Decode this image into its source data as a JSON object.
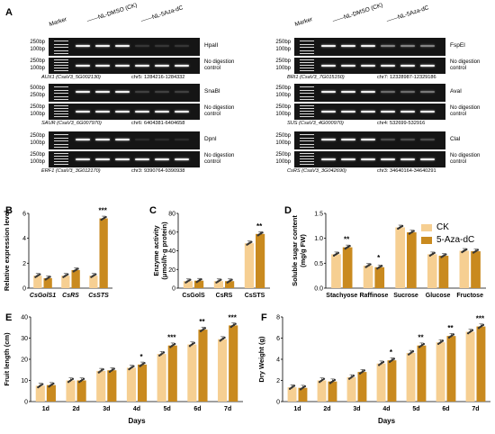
{
  "panel_a": {
    "label": "A",
    "headers": {
      "marker": "Marker",
      "ck": "NL-DMSO (CK)",
      "aza": "NL-5Aza-dC"
    },
    "bp_top": "250bp",
    "bp_bottom": "100bp",
    "bp_top_alt": "500bp",
    "bp_mid_alt": "250bp",
    "no_digestion": "No digestion\ncontrol",
    "gels": [
      {
        "enzyme": "HpaII",
        "gene": "AUX1 (CsaV3_5G002130)",
        "chr": "chr5: 1284216-1284332"
      },
      {
        "enzyme": "SnaBI",
        "gene": "SAUR (CsaV3_6G007970)",
        "chr": "chr6: 6404381-6404658"
      },
      {
        "enzyme": "DpnI",
        "gene": "ERF1 (CsaV3_3G012170)",
        "chr": "chr3: 9390764-9390938"
      },
      {
        "enzyme": "FspEI",
        "gene": "BRI1 (CsaV3_7G015150)",
        "chr": "chr7: 12328987-12329186"
      },
      {
        "enzyme": "AvaI",
        "gene": "SUS (CsaV3_4G000970)",
        "chr": "chr4: 532699-532916"
      },
      {
        "enzyme": "ClaI",
        "gene": "CsRS (CsaV3_3G042690)",
        "chr": "chr3: 34640164-34640291"
      }
    ]
  },
  "legend": {
    "ck": "CK",
    "aza": "5-Aza-dC"
  },
  "colors": {
    "ck": "#f6cf92",
    "aza": "#c98a1f",
    "dot": "#e040c8",
    "bar_edge": "#d9a050"
  },
  "chart_data": [
    {
      "panel": "B",
      "type": "bar",
      "ylabel": "Relative expression level",
      "ylim": [
        0,
        6
      ],
      "yticks": [
        "0",
        "2",
        "4",
        "6"
      ],
      "categories": [
        "CsGolS1",
        "CsRS",
        "CsSTS"
      ],
      "series": [
        {
          "name": "CK",
          "values": [
            1.0,
            1.0,
            1.0
          ]
        },
        {
          "name": "5-Aza-dC",
          "values": [
            0.8,
            1.45,
            5.6
          ]
        }
      ],
      "significance": [
        "",
        "",
        "***"
      ]
    },
    {
      "panel": "C",
      "type": "bar",
      "ylabel": "Enzyme activity\n(μmol/h·g protein)",
      "ylim": [
        0,
        80
      ],
      "yticks": [
        "0",
        "20",
        "40",
        "60",
        "80"
      ],
      "categories": [
        "CsGolS",
        "CsRS",
        "CsSTS"
      ],
      "series": [
        {
          "name": "CK",
          "values": [
            7.5,
            7.5,
            48
          ]
        },
        {
          "name": "5-Aza-dC",
          "values": [
            8,
            7.5,
            58
          ]
        }
      ],
      "significance": [
        "",
        "",
        "**"
      ]
    },
    {
      "panel": "D",
      "type": "bar",
      "ylabel": "Soluble sugar content\n(mg/g FW)",
      "ylim": [
        0,
        1.5
      ],
      "yticks": [
        "0.0",
        "0.5",
        "1.0",
        "1.5"
      ],
      "categories": [
        "Stachyose",
        "Raffinose",
        "Sucrose",
        "Glucose",
        "Fructose"
      ],
      "series": [
        {
          "name": "CK",
          "values": [
            0.68,
            0.45,
            1.22,
            0.68,
            0.75
          ]
        },
        {
          "name": "5-Aza-dC",
          "values": [
            0.82,
            0.42,
            1.12,
            0.65,
            0.74
          ]
        }
      ],
      "significance": [
        "**",
        "*",
        "",
        "",
        ""
      ]
    },
    {
      "panel": "E",
      "type": "bar",
      "xlabel": "Days",
      "ylabel": "Fruit length (cm)",
      "ylim": [
        0,
        40
      ],
      "yticks": [
        "0",
        "10",
        "20",
        "30",
        "40"
      ],
      "categories": [
        "1d",
        "2d",
        "3d",
        "4d",
        "5d",
        "6d",
        "7d"
      ],
      "series": [
        {
          "name": "CK",
          "values": [
            7.5,
            10,
            14.5,
            16,
            22.5,
            27,
            29.5
          ]
        },
        {
          "name": "5-Aza-dC",
          "values": [
            7.8,
            10,
            14.8,
            17.5,
            26.5,
            34,
            36
          ]
        }
      ],
      "significance": [
        "",
        "",
        "",
        "*",
        "***",
        "**",
        "***"
      ]
    },
    {
      "panel": "F",
      "type": "bar",
      "xlabel": "Days",
      "ylabel": "Dry Weight (g)",
      "ylim": [
        0,
        8
      ],
      "yticks": [
        "0",
        "2",
        "4",
        "6",
        "8"
      ],
      "categories": [
        "1d",
        "2d",
        "3d",
        "4d",
        "5d",
        "6d",
        "7d"
      ],
      "series": [
        {
          "name": "CK",
          "values": [
            1.35,
            2.0,
            2.3,
            3.6,
            4.6,
            5.6,
            6.6
          ]
        },
        {
          "name": "5-Aza-dC",
          "values": [
            1.3,
            1.9,
            2.8,
            3.9,
            5.3,
            6.2,
            7.1
          ]
        }
      ],
      "significance": [
        "",
        "",
        "",
        "*",
        "**",
        "**",
        "***"
      ]
    }
  ]
}
